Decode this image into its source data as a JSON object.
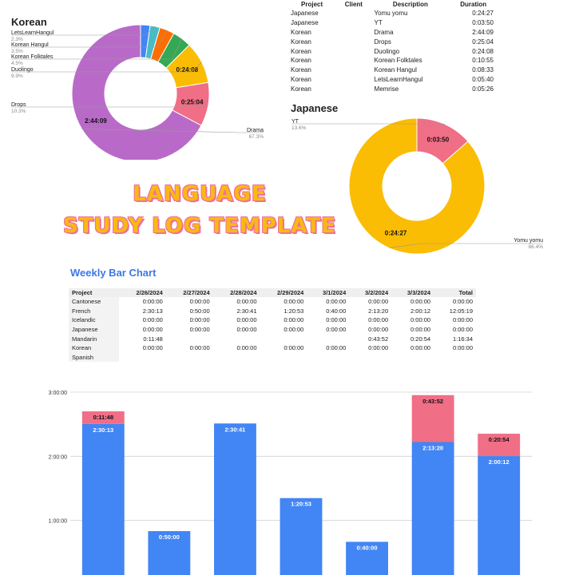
{
  "banner": {
    "line1": "LANGUAGE",
    "line2": "STUDY LOG TEMPLATE"
  },
  "log_table": {
    "headers": [
      "Project",
      "Client",
      "Description",
      "Duration"
    ],
    "rows": [
      [
        "Japanese",
        "",
        "Yomu yomu",
        "0:24:27"
      ],
      [
        "Japanese",
        "",
        "YT",
        "0:03:50"
      ],
      [
        "Korean",
        "",
        "Drama",
        "2:44:09"
      ],
      [
        "Korean",
        "",
        "Drops",
        "0:25:04"
      ],
      [
        "Korean",
        "",
        "Duolingo",
        "0:24:08"
      ],
      [
        "Korean",
        "",
        "Korean Folktales",
        "0:10:55"
      ],
      [
        "Korean",
        "",
        "Korean Hangul",
        "0:08:33"
      ],
      [
        "Korean",
        "",
        "LetsLearnHangul",
        "0:05:40"
      ],
      [
        "Korean",
        "",
        "Memrise",
        "0:05:26"
      ]
    ]
  },
  "weekly_title": "Weekly Bar Chart",
  "weekly_table": {
    "headers": [
      "Project",
      "2/26/2024",
      "2/27/2024",
      "2/28/2024",
      "2/29/2024",
      "3/1/2024",
      "3/2/2024",
      "3/3/2024",
      "Total"
    ],
    "rows": [
      [
        "Cantonese",
        "0:00:00",
        "0:00:00",
        "0:00:00",
        "0:00:00",
        "0:00:00",
        "0:00:00",
        "0:00:00",
        "0:00:00"
      ],
      [
        "French",
        "2:30:13",
        "0:50:00",
        "2:30:41",
        "1:20:53",
        "0:40:00",
        "2:13:20",
        "2:00:12",
        "12:05:19"
      ],
      [
        "Icelandic",
        "0:00:00",
        "0:00:00",
        "0:00:00",
        "0:00:00",
        "0:00:00",
        "0:00:00",
        "0:00:00",
        "0:00:00"
      ],
      [
        "Japanese",
        "0:00:00",
        "0:00:00",
        "0:00:00",
        "0:00:00",
        "0:00:00",
        "0:00:00",
        "0:00:00",
        "0:00:00"
      ],
      [
        "Mandarin",
        "0:11:48",
        "",
        "",
        "",
        "",
        "0:43:52",
        "0:20:54",
        "1:16:34"
      ],
      [
        "Korean",
        "0:00:00",
        "0:00:00",
        "0:00:00",
        "0:00:00",
        "0:00:00",
        "0:00:00",
        "0:00:00",
        "0:00:00"
      ],
      [
        "Spanish",
        "",
        "",
        "",
        "",
        "",
        "",
        "",
        ""
      ]
    ]
  },
  "chart_data": [
    {
      "type": "pie",
      "donut": true,
      "title": "Korean",
      "title_color": "#9c4fb0",
      "slices": [
        {
          "label": "Drama",
          "value_label": "2:44:09",
          "percent": "67.3%",
          "value": 164.15,
          "color": "#b96ac8"
        },
        {
          "label": "Drops",
          "value_label": "0:25:04",
          "percent": "10.3%",
          "value": 25.07,
          "color": "#f06e86"
        },
        {
          "label": "Duolingo",
          "value_label": "0:24:08",
          "percent": "9.9%",
          "value": 24.13,
          "color": "#fbbc04"
        },
        {
          "label": "Korean Folktales",
          "value_label": "",
          "percent": "4.5%",
          "value": 10.92,
          "color": "#34a853"
        },
        {
          "label": "Korean Hangul",
          "value_label": "",
          "percent": "3.5%",
          "value": 8.55,
          "color": "#ff6d01"
        },
        {
          "label": "LetsLearnHangul",
          "value_label": "",
          "percent": "2.3%",
          "value": 5.67,
          "color": "#46bdc6"
        },
        {
          "label": "Memrise",
          "value_label": "",
          "percent": "",
          "value": 5.43,
          "color": "#4285f4"
        }
      ]
    },
    {
      "type": "pie",
      "donut": true,
      "title": "Japanese",
      "title_color": "#f6b400",
      "slices": [
        {
          "label": "Yomu yomu",
          "value_label": "0:24:27",
          "percent": "86.4%",
          "value": 24.45,
          "color": "#fbbc04"
        },
        {
          "label": "YT",
          "value_label": "0:03:50",
          "percent": "13.6%",
          "value": 3.83,
          "color": "#f06e86"
        }
      ]
    },
    {
      "type": "bar",
      "stacked": true,
      "categories": [
        "2/26/2024",
        "2/27/2024",
        "2/28/2024",
        "2/29/2024",
        "3/1/2024",
        "3/2/2024",
        "3/3/2024"
      ],
      "ylim": [
        0,
        3
      ],
      "yticks": [
        "1:00:00",
        "2:00:00",
        "3:00:00"
      ],
      "grid": true,
      "series": [
        {
          "name": "French",
          "color": "#4285f4",
          "values": [
            2.5036,
            0.8333,
            2.5114,
            1.3481,
            0.6667,
            2.2222,
            2.0033
          ],
          "labels": [
            "2:30:13",
            "0:50:00",
            "2:30:41",
            "1:20:53",
            "0:40:00",
            "2:13:20",
            "2:00:12"
          ]
        },
        {
          "name": "Mandarin",
          "color": "#f06e86",
          "values": [
            0.1967,
            0,
            0,
            0,
            0,
            0.7311,
            0.3483
          ],
          "labels": [
            "0:11:48",
            "",
            "",
            "",
            "",
            "0:43:52",
            "0:20:54"
          ]
        }
      ]
    }
  ]
}
